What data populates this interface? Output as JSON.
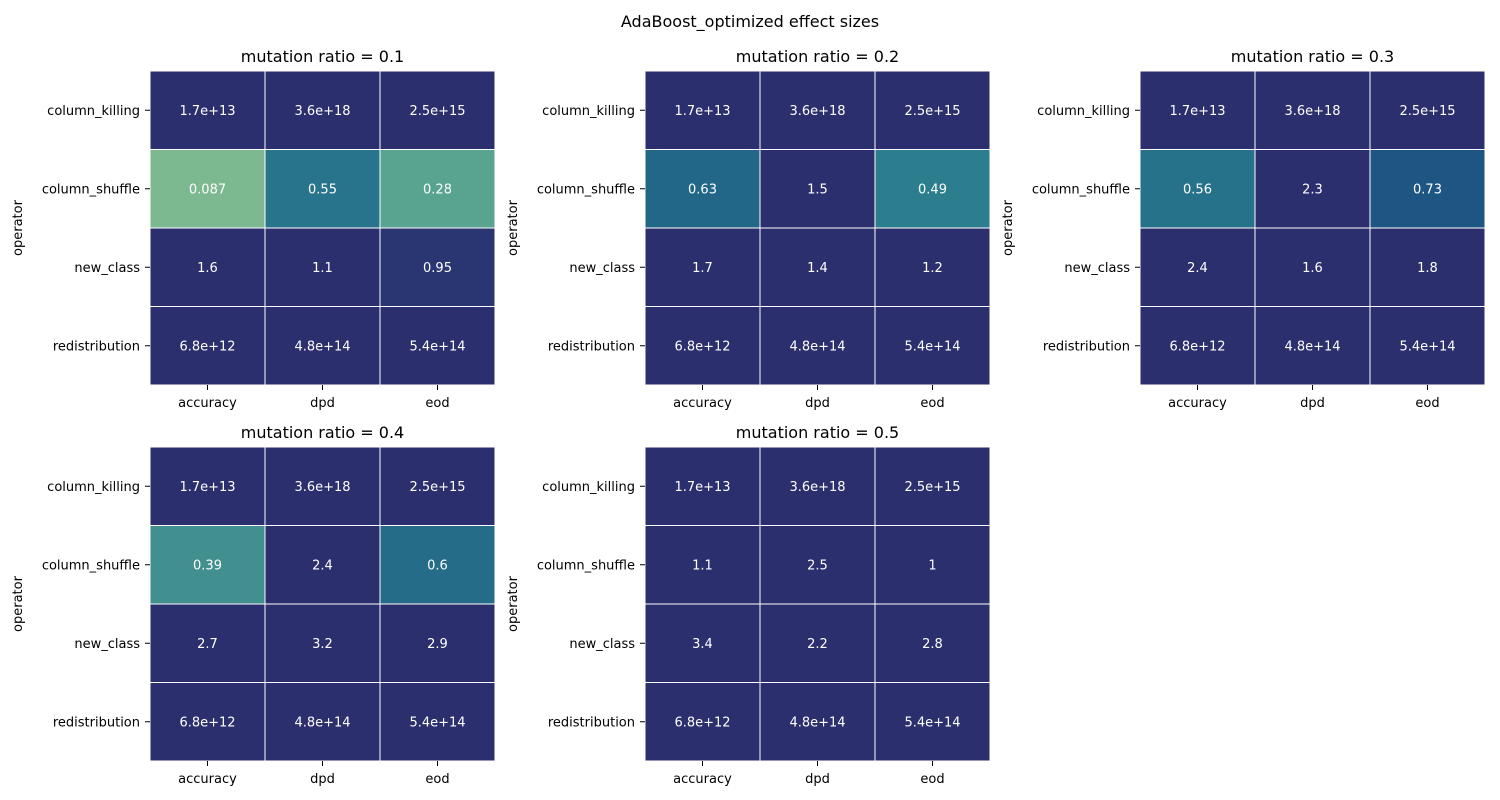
{
  "figure": {
    "title": "AdaBoost_optimized effect sizes"
  },
  "colors": {
    "low": "#8dc28f",
    "high": "#2c2f6e"
  },
  "chart_data": {
    "type": "heatmap",
    "color_scale": {
      "min": 0.0,
      "max": 1.0,
      "clip": true
    },
    "rows": [
      "column_killing",
      "column_shuffle",
      "new_class",
      "redistribution"
    ],
    "columns": [
      "accuracy",
      "dpd",
      "eod"
    ],
    "xlabel": "",
    "ylabel": "operator",
    "panels": [
      {
        "title": "mutation ratio = 0.1",
        "values": [
          [
            17000000000000.0,
            3.6e+18,
            2500000000000000.0
          ],
          [
            0.087,
            0.55,
            0.28
          ],
          [
            1.6,
            1.1,
            0.95
          ],
          [
            6800000000000.0,
            480000000000000.0,
            540000000000000.0
          ]
        ],
        "labels": [
          [
            "1.7e+13",
            "3.6e+18",
            "2.5e+15"
          ],
          [
            "0.087",
            "0.55",
            "0.28"
          ],
          [
            "1.6",
            "1.1",
            "0.95"
          ],
          [
            "6.8e+12",
            "4.8e+14",
            "5.4e+14"
          ]
        ]
      },
      {
        "title": "mutation ratio = 0.2",
        "values": [
          [
            17000000000000.0,
            3.6e+18,
            2500000000000000.0
          ],
          [
            0.63,
            1.5,
            0.49
          ],
          [
            1.7,
            1.4,
            1.2
          ],
          [
            6800000000000.0,
            480000000000000.0,
            540000000000000.0
          ]
        ],
        "labels": [
          [
            "1.7e+13",
            "3.6e+18",
            "2.5e+15"
          ],
          [
            "0.63",
            "1.5",
            "0.49"
          ],
          [
            "1.7",
            "1.4",
            "1.2"
          ],
          [
            "6.8e+12",
            "4.8e+14",
            "5.4e+14"
          ]
        ]
      },
      {
        "title": "mutation ratio = 0.3",
        "values": [
          [
            17000000000000.0,
            3.6e+18,
            2500000000000000.0
          ],
          [
            0.56,
            2.3,
            0.73
          ],
          [
            2.4,
            1.6,
            1.8
          ],
          [
            6800000000000.0,
            480000000000000.0,
            540000000000000.0
          ]
        ],
        "labels": [
          [
            "1.7e+13",
            "3.6e+18",
            "2.5e+15"
          ],
          [
            "0.56",
            "2.3",
            "0.73"
          ],
          [
            "2.4",
            "1.6",
            "1.8"
          ],
          [
            "6.8e+12",
            "4.8e+14",
            "5.4e+14"
          ]
        ]
      },
      {
        "title": "mutation ratio = 0.4",
        "values": [
          [
            17000000000000.0,
            3.6e+18,
            2500000000000000.0
          ],
          [
            0.39,
            2.4,
            0.6
          ],
          [
            2.7,
            3.2,
            2.9
          ],
          [
            6800000000000.0,
            480000000000000.0,
            540000000000000.0
          ]
        ],
        "labels": [
          [
            "1.7e+13",
            "3.6e+18",
            "2.5e+15"
          ],
          [
            "0.39",
            "2.4",
            "0.6"
          ],
          [
            "2.7",
            "3.2",
            "2.9"
          ],
          [
            "6.8e+12",
            "4.8e+14",
            "5.4e+14"
          ]
        ]
      },
      {
        "title": "mutation ratio = 0.5",
        "values": [
          [
            17000000000000.0,
            3.6e+18,
            2500000000000000.0
          ],
          [
            1.1,
            2.5,
            1.0
          ],
          [
            3.4,
            2.2,
            2.8
          ],
          [
            6800000000000.0,
            480000000000000.0,
            540000000000000.0
          ]
        ],
        "labels": [
          [
            "1.7e+13",
            "3.6e+18",
            "2.5e+15"
          ],
          [
            "1.1",
            "2.5",
            "1"
          ],
          [
            "3.4",
            "2.2",
            "2.8"
          ],
          [
            "6.8e+12",
            "4.8e+14",
            "5.4e+14"
          ]
        ]
      }
    ]
  }
}
